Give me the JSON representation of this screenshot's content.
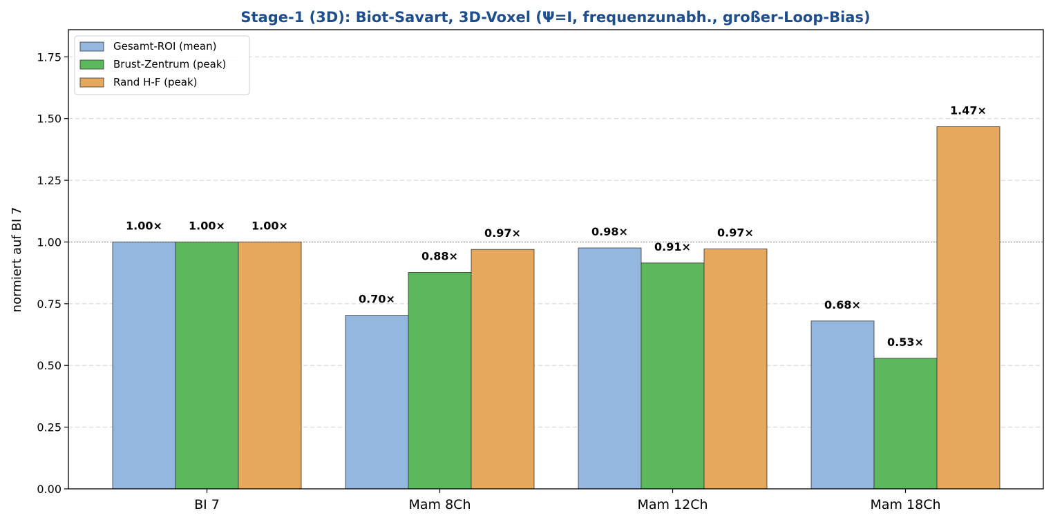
{
  "chart_data": {
    "type": "bar",
    "title": "Stage-1 (3D): Biot-Savart, 3D-Voxel (Ψ=I, frequenzunabh., großer-Loop-Bias)",
    "xlabel": "",
    "ylabel": "normiert auf BI 7",
    "categories": [
      "BI 7",
      "Mam 8Ch",
      "Mam 12Ch",
      "Mam 18Ch"
    ],
    "ylim": [
      0,
      1.86
    ],
    "yticks": [
      0.0,
      0.25,
      0.5,
      0.75,
      1.0,
      1.25,
      1.5,
      1.75
    ],
    "ytick_labels": [
      "0.00",
      "0.25",
      "0.50",
      "0.75",
      "1.00",
      "1.25",
      "1.50",
      "1.75"
    ],
    "grid": "horizontal dashed",
    "reference_line": 1.0,
    "legend_position": "top-left",
    "series": [
      {
        "name": "Gesamt-ROI (mean)",
        "color": "#93b7df",
        "values": [
          1.0,
          0.703,
          0.976,
          0.68
        ],
        "labels": [
          "1.00×",
          "0.70×",
          "0.98×",
          "0.68×"
        ]
      },
      {
        "name": "Brust-Zentrum (peak)",
        "color": "#5cb85c",
        "values": [
          1.0,
          0.877,
          0.915,
          0.529
        ],
        "labels": [
          "1.00×",
          "0.88×",
          "0.91×",
          "0.53×"
        ]
      },
      {
        "name": "Rand H-F (peak)",
        "color": "#e5a85d",
        "values": [
          1.0,
          0.97,
          0.972,
          1.467
        ],
        "labels": [
          "1.00×",
          "0.97×",
          "0.97×",
          "1.47×"
        ]
      }
    ]
  }
}
